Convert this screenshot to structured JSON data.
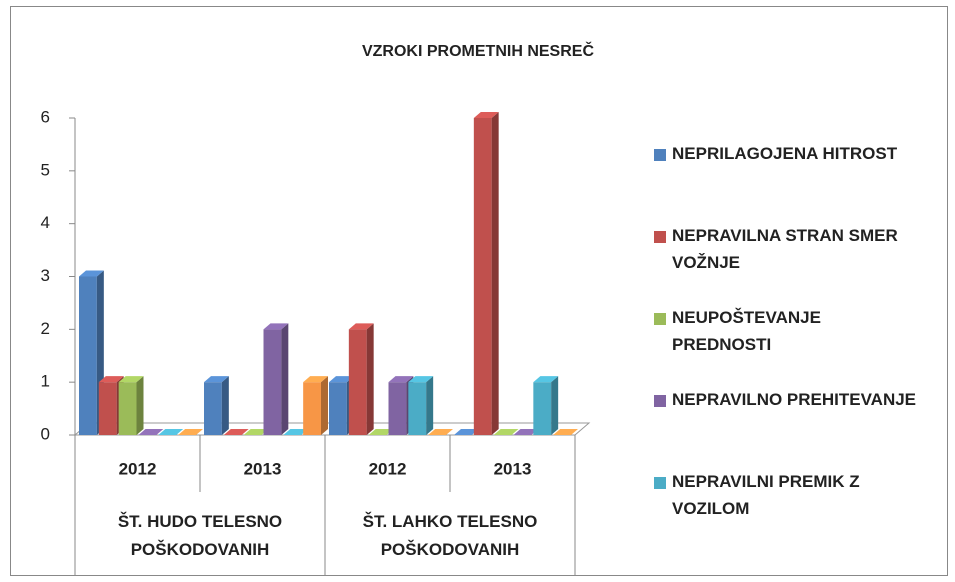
{
  "chart_data": {
    "type": "bar",
    "title": "VZROKI PROMETNIH NESREČ",
    "categories": [
      "2012",
      "2013",
      "2012",
      "2013"
    ],
    "groups": [
      "ŠT. HUDO TELESNO POŠKODOVANIH",
      "ŠT. LAHKO TELESNO POŠKODOVANIH"
    ],
    "series": [
      {
        "name": "NEPRILAGOJENA HITROST",
        "color": "#4f81bd",
        "values": [
          3,
          1,
          1,
          0
        ]
      },
      {
        "name": "NEPRAVILNA STRAN SMER VOŽNJE",
        "color": "#c0504d",
        "values": [
          1,
          0,
          2,
          6
        ]
      },
      {
        "name": "NEUPOŠTEVANJE PREDNOSTI",
        "color": "#9bbb59",
        "values": [
          1,
          0,
          0,
          0
        ]
      },
      {
        "name": "NEPRAVILNO PREHITEVANJE",
        "color": "#8064a2",
        "values": [
          0,
          2,
          1,
          0
        ]
      },
      {
        "name": "NEPRAVILNI PREMIK Z VOZILOM",
        "color": "#4bacc6",
        "values": [
          0,
          0,
          1,
          1
        ]
      },
      {
        "color": "#f79646",
        "values": [
          0,
          1,
          0,
          0
        ]
      }
    ],
    "ylim": [
      0,
      6
    ],
    "yticks": [
      0,
      1,
      2,
      3,
      4,
      5,
      6
    ],
    "grid": false
  }
}
